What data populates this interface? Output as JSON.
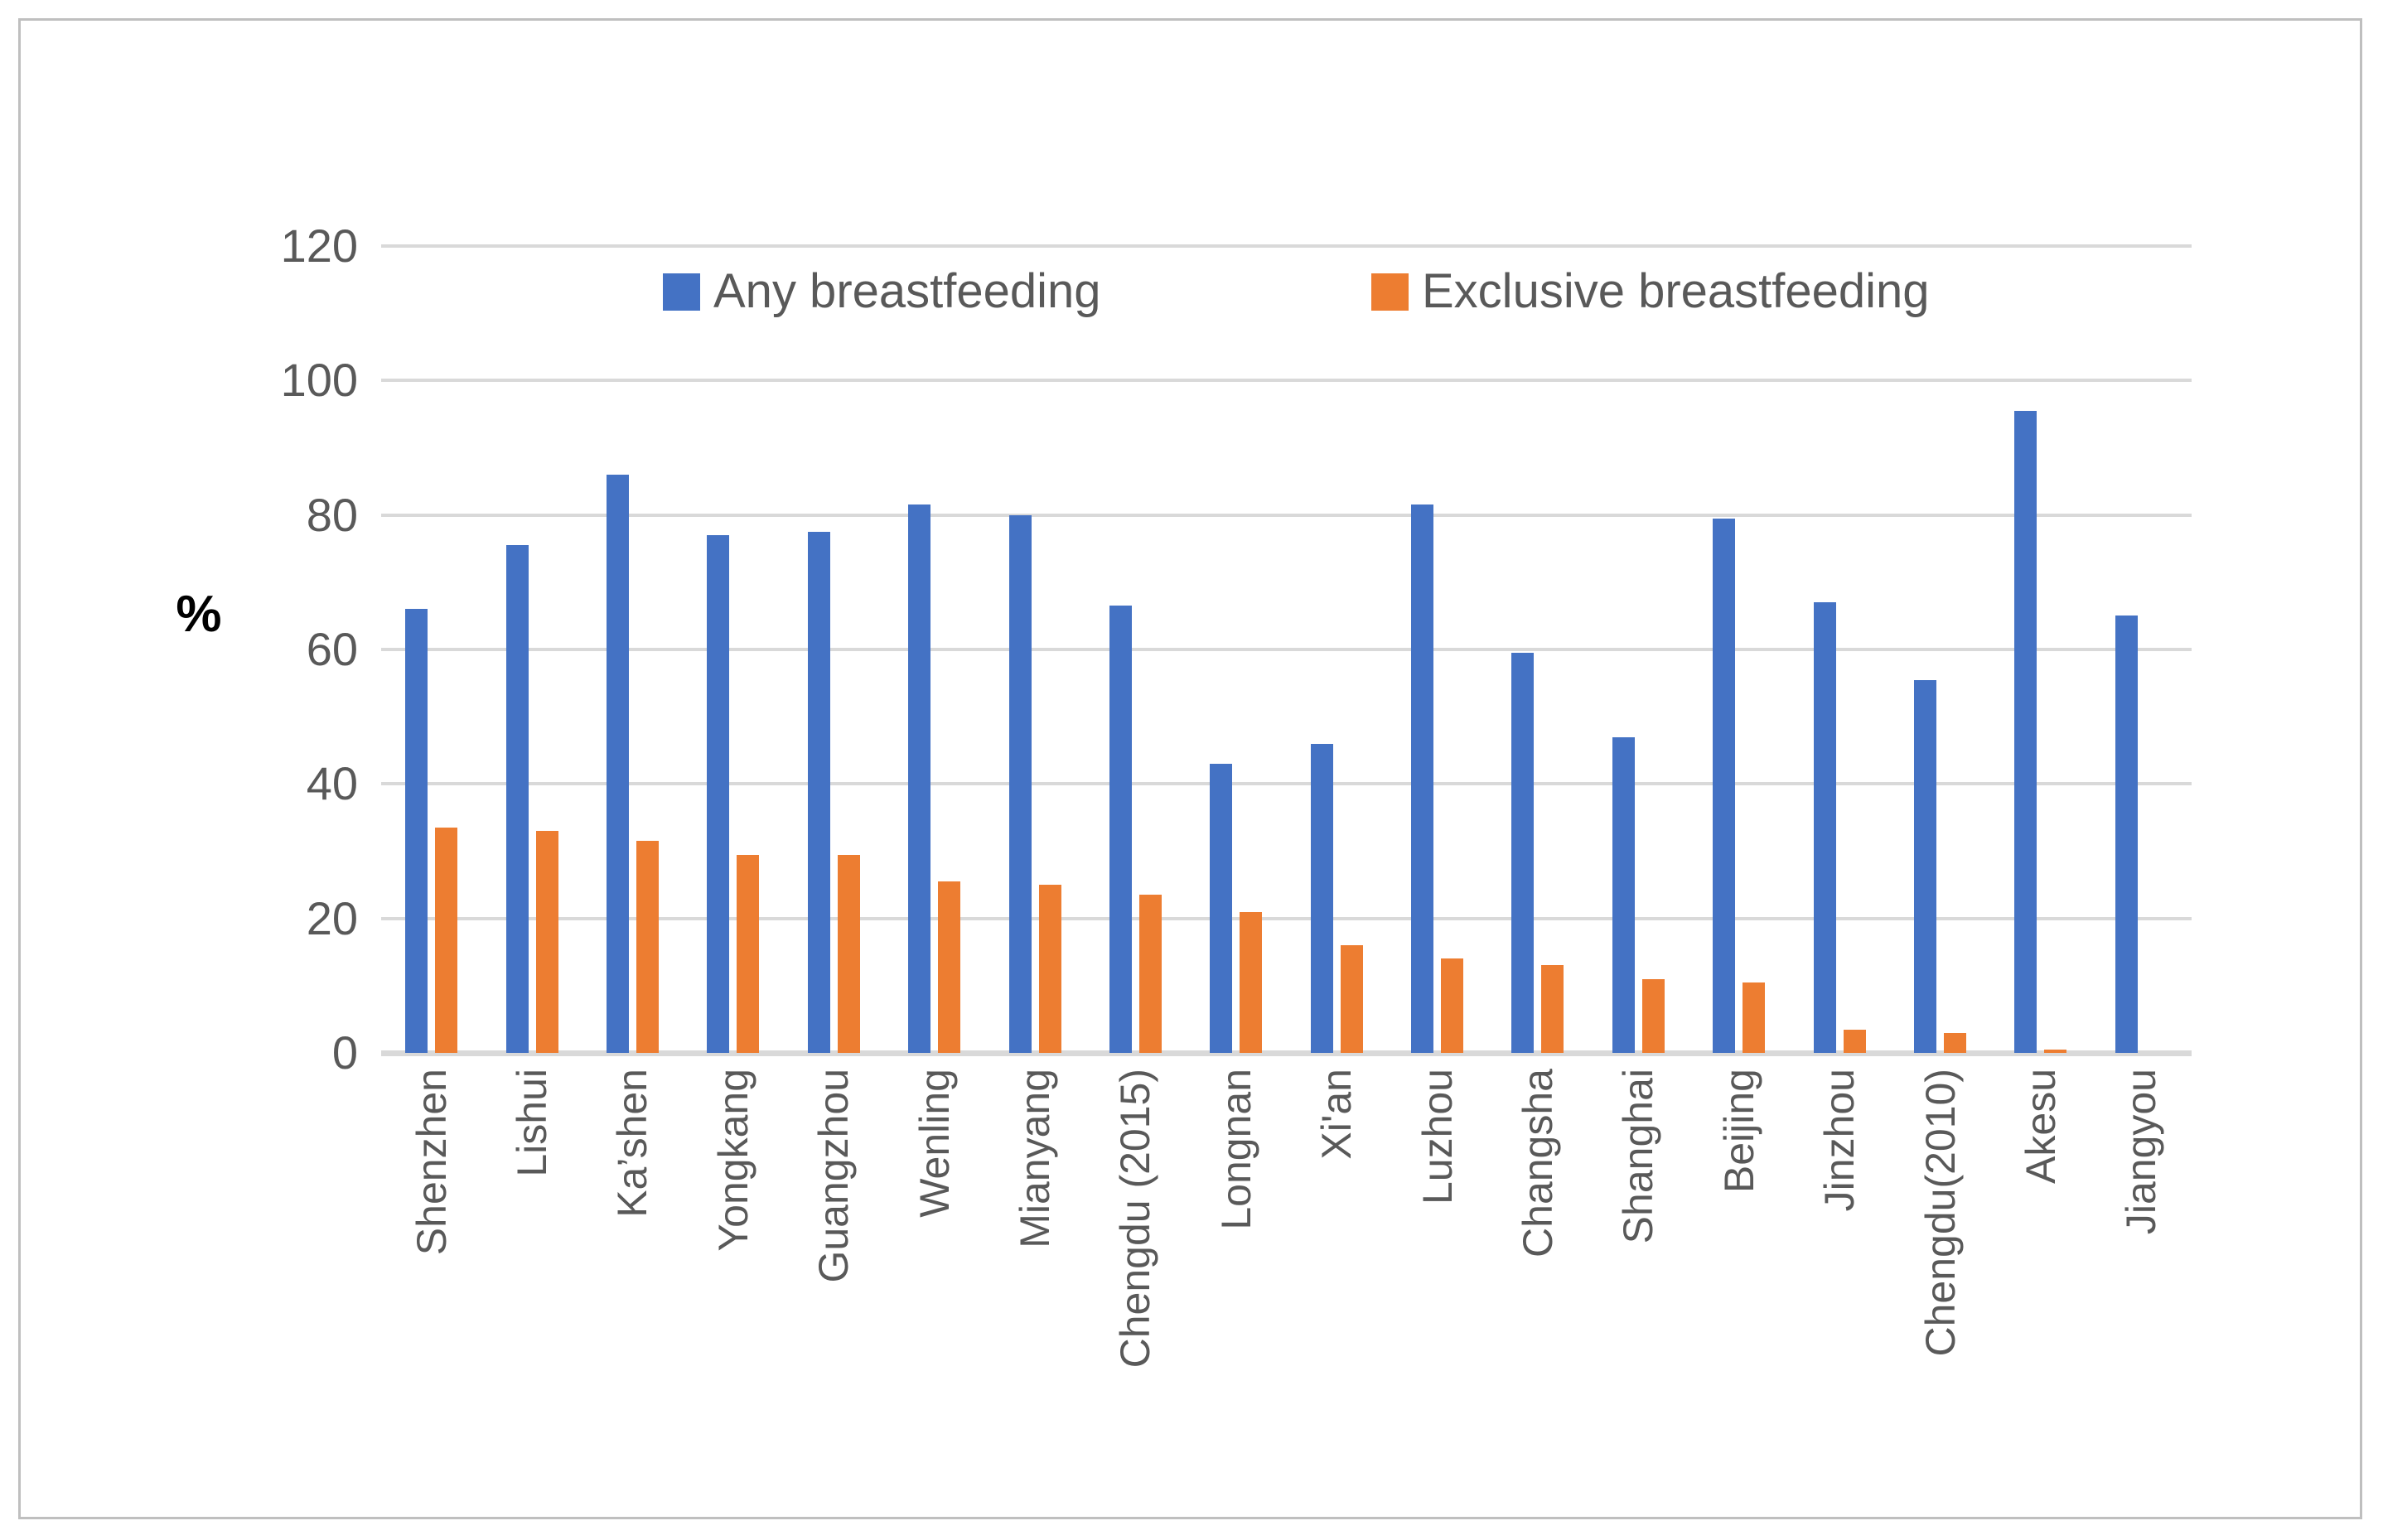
{
  "chart_data": {
    "type": "bar",
    "title": "",
    "xlabel": "",
    "ylabel": "%",
    "ylim": [
      0,
      120
    ],
    "yticks": [
      0,
      20,
      40,
      60,
      80,
      100,
      120
    ],
    "grid": "horizontal",
    "legend_position": "top-inside",
    "categories": [
      "Shenzhen",
      "Lishui",
      "Ka’shen",
      "Yongkang",
      "Guangzhou",
      "Wenling",
      "Mianyang",
      "Chengdu (2015)",
      "Longnan",
      "Xi'an",
      "Luzhou",
      "Changsha",
      "Shanghai",
      "Beijing",
      "Jinzhou",
      "Chengdu(2010)",
      "Akesu",
      "Jiangyou"
    ],
    "series": [
      {
        "name": "Any breastfeeding",
        "color": "#4472C4",
        "values": [
          66,
          75.5,
          86,
          77,
          77.5,
          81.5,
          80,
          66.5,
          43,
          46,
          81.5,
          59.5,
          47,
          79.5,
          67,
          55.5,
          95.5,
          65
        ]
      },
      {
        "name": "Exclusive breastfeeding",
        "color": "#ED7D31",
        "values": [
          33.5,
          33,
          31.5,
          29.5,
          29.5,
          25.5,
          25,
          23.5,
          21,
          16,
          14,
          13,
          11,
          10.5,
          3.5,
          3,
          0.5,
          0
        ]
      }
    ]
  },
  "colors": {
    "gridline": "#D9D9D9",
    "axis_text": "#595959",
    "frame_border": "#BFBFBF",
    "background": "#FFFFFF"
  }
}
